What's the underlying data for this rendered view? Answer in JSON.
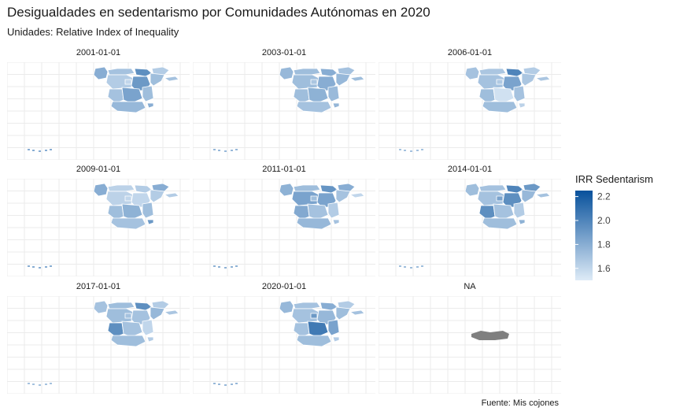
{
  "chart_data": {
    "type": "heatmap",
    "title": "Desigualdades en sedentarismo por Comunidades Autónomas en 2020",
    "subtitle": "Unidades: Relative Index of Inequality",
    "caption": "Fuente: Mis cojones",
    "facets": [
      "2001-01-01",
      "2003-01-01",
      "2006-01-01",
      "2009-01-01",
      "2011-01-01",
      "2014-01-01",
      "2017-01-01",
      "2020-01-01",
      "NA"
    ],
    "legend": {
      "title": "IRR Sedentarism",
      "ticks": [
        "2.2",
        "2.0",
        "1.8",
        "1.6"
      ],
      "range": [
        1.5,
        2.25
      ],
      "low_color": "#deebf7",
      "high_color": "#08519c",
      "na_color": "#7f7f7f"
    },
    "grid": true
  }
}
